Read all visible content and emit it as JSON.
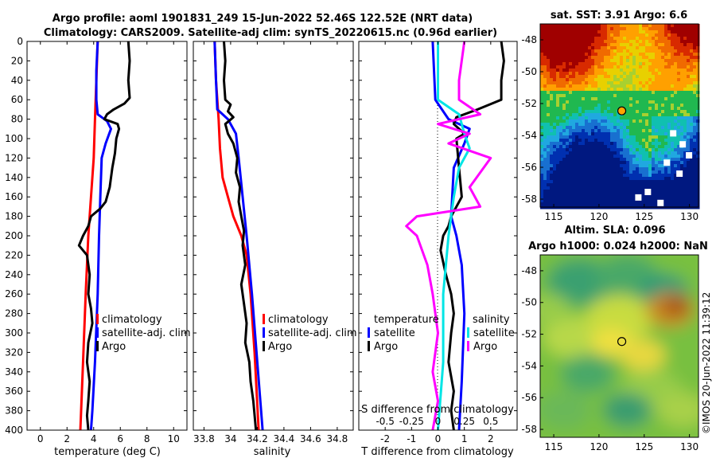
{
  "header": {
    "title_line1": "Argo profile: aoml 1901831_249 15-Jun-2022 52.46S 122.52E (NRT data)",
    "title_line2": "Climatology: CARS2009. Satellite-adj clim: synTS_20220615.nc (0.96d earlier)"
  },
  "colors": {
    "climatology": "#ff0000",
    "satellite": "#0000ff",
    "argo": "#000000",
    "sat_salinity": "#00e5e5",
    "argo_salinity": "#ff00ff"
  },
  "chart_data": [
    {
      "type": "line",
      "name": "temperature-profile",
      "xlabel": "temperature (deg C)",
      "xlim": [
        -1,
        11
      ],
      "ylim": [
        400,
        0
      ],
      "xticks": [
        "0",
        "2",
        "4",
        "6",
        "8",
        "10"
      ],
      "yticks": [
        "0",
        "20",
        "40",
        "60",
        "80",
        "100",
        "120",
        "140",
        "160",
        "180",
        "200",
        "220",
        "240",
        "260",
        "280",
        "300",
        "320",
        "340",
        "360",
        "380",
        "400"
      ],
      "legend": [
        "climatology",
        "satellite-adj. clim",
        "Argo"
      ],
      "legend_loc": "right",
      "series": [
        {
          "name": "climatology",
          "points": [
            [
              4.3,
              0
            ],
            [
              4.2,
              40
            ],
            [
              4.1,
              80
            ],
            [
              4.0,
              120
            ],
            [
              3.8,
              160
            ],
            [
              3.6,
              200
            ],
            [
              3.4,
              260
            ],
            [
              3.2,
              330
            ],
            [
              3.0,
              400
            ]
          ]
        },
        {
          "name": "satellite-adj. clim",
          "points": [
            [
              4.3,
              0
            ],
            [
              4.2,
              30
            ],
            [
              4.2,
              60
            ],
            [
              4.3,
              75
            ],
            [
              5.0,
              82
            ],
            [
              5.3,
              90
            ],
            [
              4.9,
              105
            ],
            [
              4.6,
              120
            ],
            [
              4.5,
              160
            ],
            [
              4.4,
              200
            ],
            [
              4.3,
              260
            ],
            [
              4.1,
              330
            ],
            [
              3.9,
              380
            ],
            [
              3.8,
              400
            ]
          ]
        },
        {
          "name": "Argo",
          "points": [
            [
              6.6,
              0
            ],
            [
              6.7,
              20
            ],
            [
              6.6,
              40
            ],
            [
              6.7,
              58
            ],
            [
              6.3,
              64
            ],
            [
              5.5,
              70
            ],
            [
              5.0,
              75
            ],
            [
              4.8,
              80
            ],
            [
              5.8,
              85
            ],
            [
              5.9,
              90
            ],
            [
              5.7,
              100
            ],
            [
              5.6,
              115
            ],
            [
              5.4,
              130
            ],
            [
              5.2,
              150
            ],
            [
              4.9,
              165
            ],
            [
              4.5,
              172
            ],
            [
              3.8,
              180
            ],
            [
              3.6,
              190
            ],
            [
              3.2,
              200
            ],
            [
              2.9,
              210
            ],
            [
              3.5,
              220
            ],
            [
              3.7,
              240
            ],
            [
              3.6,
              260
            ],
            [
              3.8,
              275
            ],
            [
              3.9,
              290
            ],
            [
              3.6,
              310
            ],
            [
              3.5,
              330
            ],
            [
              3.7,
              350
            ],
            [
              3.6,
              370
            ],
            [
              3.5,
              385
            ],
            [
              3.6,
              400
            ]
          ]
        }
      ]
    },
    {
      "type": "line",
      "name": "salinity-profile",
      "xlabel": "salinity",
      "xlim": [
        33.72,
        34.92
      ],
      "ylim": [
        400,
        0
      ],
      "xticks": [
        "33.8",
        "34",
        "34.2",
        "34.4",
        "34.6",
        "34.8"
      ],
      "legend": [
        "climatology",
        "satellite-adj. clim",
        "Argo"
      ],
      "legend_loc": "right",
      "series": [
        {
          "name": "climatology",
          "points": [
            [
              33.88,
              0
            ],
            [
              33.89,
              40
            ],
            [
              33.91,
              80
            ],
            [
              33.92,
              110
            ],
            [
              33.94,
              140
            ],
            [
              33.98,
              160
            ],
            [
              34.02,
              180
            ],
            [
              34.08,
              200
            ],
            [
              34.12,
              220
            ],
            [
              34.15,
              260
            ],
            [
              34.18,
              320
            ],
            [
              34.21,
              400
            ]
          ]
        },
        {
          "name": "satellite-adj. clim",
          "points": [
            [
              33.88,
              0
            ],
            [
              33.89,
              40
            ],
            [
              33.9,
              70
            ],
            [
              33.98,
              80
            ],
            [
              34.04,
              95
            ],
            [
              34.06,
              120
            ],
            [
              34.09,
              160
            ],
            [
              34.12,
              200
            ],
            [
              34.16,
              260
            ],
            [
              34.2,
              330
            ],
            [
              34.24,
              400
            ]
          ]
        },
        {
          "name": "Argo",
          "points": [
            [
              33.95,
              0
            ],
            [
              33.96,
              20
            ],
            [
              33.95,
              40
            ],
            [
              33.96,
              60
            ],
            [
              34.0,
              65
            ],
            [
              33.98,
              72
            ],
            [
              34.02,
              78
            ],
            [
              33.96,
              85
            ],
            [
              33.98,
              95
            ],
            [
              34.02,
              105
            ],
            [
              34.05,
              120
            ],
            [
              34.04,
              135
            ],
            [
              34.07,
              150
            ],
            [
              34.06,
              165
            ],
            [
              34.08,
              180
            ],
            [
              34.1,
              195
            ],
            [
              34.09,
              210
            ],
            [
              34.11,
              230
            ],
            [
              34.08,
              250
            ],
            [
              34.1,
              270
            ],
            [
              34.12,
              290
            ],
            [
              34.11,
              310
            ],
            [
              34.14,
              330
            ],
            [
              34.15,
              350
            ],
            [
              34.17,
              370
            ],
            [
              34.19,
              400
            ]
          ]
        }
      ]
    },
    {
      "type": "line",
      "name": "difference-profile",
      "xlabel": "T difference from climatology",
      "xlabel_top": "S difference from climatology",
      "xlim": [
        -3,
        3
      ],
      "ylim": [
        400,
        0
      ],
      "xticks": [
        "-2",
        "-1",
        "0",
        "1",
        "2"
      ],
      "xticks_top": [
        "-0.5",
        "-0.25",
        "0",
        "0.25",
        "0.5"
      ],
      "legend_temperature": {
        "title": "temperature",
        "items": [
          "satellite",
          "Argo"
        ]
      },
      "legend_salinity": {
        "title": "salinity",
        "items": [
          "satellite",
          "Argo"
        ]
      },
      "series": [
        {
          "name": "T satellite",
          "points": [
            [
              -0.2,
              0
            ],
            [
              -0.1,
              60
            ],
            [
              0.4,
              80
            ],
            [
              1.2,
              90
            ],
            [
              1.0,
              105
            ],
            [
              0.6,
              130
            ],
            [
              0.5,
              180
            ],
            [
              0.7,
              200
            ],
            [
              0.9,
              230
            ],
            [
              1.0,
              280
            ],
            [
              0.9,
              350
            ],
            [
              0.8,
              400
            ]
          ]
        },
        {
          "name": "T Argo",
          "points": [
            [
              2.4,
              0
            ],
            [
              2.5,
              20
            ],
            [
              2.4,
              40
            ],
            [
              2.4,
              60
            ],
            [
              1.5,
              70
            ],
            [
              0.7,
              78
            ],
            [
              0.6,
              85
            ],
            [
              1.0,
              95
            ],
            [
              0.7,
              100
            ],
            [
              0.8,
              130
            ],
            [
              0.9,
              160
            ],
            [
              0.5,
              180
            ],
            [
              0.4,
              190
            ],
            [
              0.2,
              200
            ],
            [
              0.1,
              215
            ],
            [
              0.3,
              240
            ],
            [
              0.5,
              260
            ],
            [
              0.6,
              280
            ],
            [
              0.5,
              300
            ],
            [
              0.4,
              330
            ],
            [
              0.6,
              360
            ],
            [
              0.5,
              380
            ],
            [
              0.6,
              400
            ]
          ]
        },
        {
          "name": "S satellite",
          "points": [
            [
              0.0,
              0
            ],
            [
              0.0,
              60
            ],
            [
              0.2,
              75
            ],
            [
              0.25,
              95
            ],
            [
              0.3,
              110
            ],
            [
              0.2,
              130
            ],
            [
              0.15,
              160
            ],
            [
              0.1,
              200
            ],
            [
              0.05,
              260
            ],
            [
              0.05,
              330
            ],
            [
              0.0,
              400
            ]
          ]
        },
        {
          "name": "S Argo",
          "points": [
            [
              0.25,
              0
            ],
            [
              0.2,
              40
            ],
            [
              0.2,
              60
            ],
            [
              0.4,
              75
            ],
            [
              0.0,
              85
            ],
            [
              0.3,
              95
            ],
            [
              0.1,
              105
            ],
            [
              0.5,
              120
            ],
            [
              0.3,
              150
            ],
            [
              0.4,
              170
            ],
            [
              -0.2,
              180
            ],
            [
              -0.3,
              190
            ],
            [
              -0.2,
              200
            ],
            [
              -0.1,
              230
            ],
            [
              -0.05,
              260
            ],
            [
              0.0,
              300
            ],
            [
              -0.05,
              340
            ],
            [
              0.0,
              370
            ],
            [
              -0.05,
              400
            ]
          ]
        }
      ]
    },
    {
      "type": "heatmap",
      "name": "sst-map",
      "title": "sat. SST: 3.91 Argo: 6.6",
      "xlim": [
        113.5,
        131
      ],
      "ylim": [
        -58.5,
        -47
      ],
      "xticks": [
        "115",
        "120",
        "125",
        "130"
      ],
      "yticks": [
        "-48",
        "-50",
        "-52",
        "-54",
        "-56",
        "-58"
      ],
      "argo_position": [
        122.52,
        -52.46
      ]
    },
    {
      "type": "heatmap",
      "name": "sla-map",
      "title": "Altim. SLA: 0.096",
      "subtitle": "Argo h1000: 0.024 h2000: NaN",
      "xlim": [
        113.5,
        131
      ],
      "ylim": [
        -58.5,
        -47
      ],
      "xticks": [
        "115",
        "120",
        "125",
        "130"
      ],
      "yticks": [
        "-48",
        "-50",
        "-52",
        "-54",
        "-56",
        "-58"
      ],
      "argo_position": [
        122.52,
        -52.46
      ]
    }
  ],
  "footer": {
    "stamp": "©IMOS 20-Jun-2022 11:39:12"
  }
}
